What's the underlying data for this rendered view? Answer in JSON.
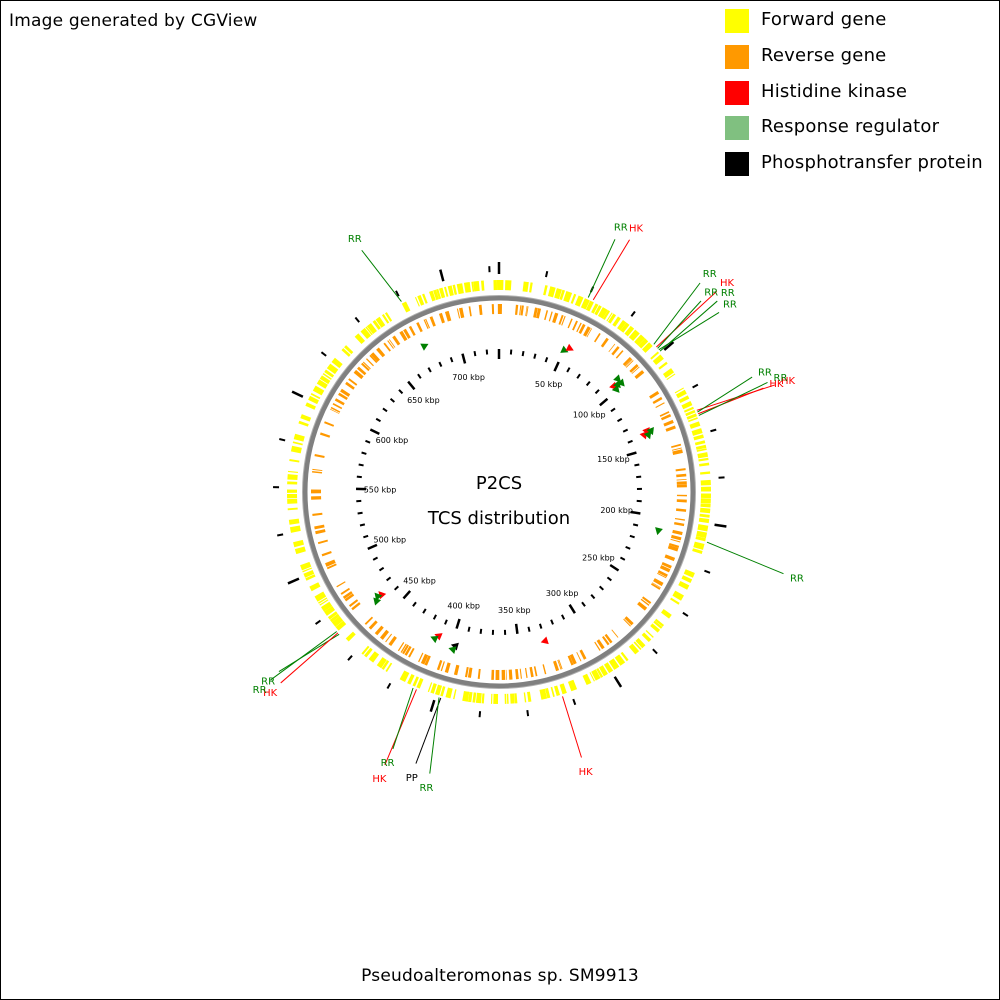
{
  "header": {
    "generated_by": "Image generated by CGView"
  },
  "legend": [
    {
      "label": "Forward gene",
      "color": "#ffff00"
    },
    {
      "label": "Reverse gene",
      "color": "#ff9900"
    },
    {
      "label": "Histidine kinase",
      "color": "#ff0000"
    },
    {
      "label": "Response regulator",
      "color": "#80c080"
    },
    {
      "label": "Phosphotransfer protein",
      "color": "#000000"
    }
  ],
  "center": {
    "line1": "P2CS",
    "line2": "TCS distribution"
  },
  "footer": {
    "organism": "Pseudoalteromonas sp. SM9913"
  },
  "colors": {
    "forward": "#ffff00",
    "reverse": "#ff9900",
    "hk": "#ff0000",
    "rr": "#008000",
    "pp": "#000000",
    "backbone": "#808080",
    "ticks": "#000000"
  },
  "chart_data": {
    "type": "circular-genome-map",
    "genome_length_kbp": 730,
    "tick_labels": [
      {
        "label": "50 kbp",
        "value": 50
      },
      {
        "label": "100 kbp",
        "value": 100
      },
      {
        "label": "150 kbp",
        "value": 150
      },
      {
        "label": "200 kbp",
        "value": 200
      },
      {
        "label": "250 kbp",
        "value": 250
      },
      {
        "label": "300 kbp",
        "value": 300
      },
      {
        "label": "350 kbp",
        "value": 350
      },
      {
        "label": "400 kbp",
        "value": 400
      },
      {
        "label": "450 kbp",
        "value": 450
      },
      {
        "label": "500 kbp",
        "value": 500
      },
      {
        "label": "550 kbp",
        "value": 550
      },
      {
        "label": "600 kbp",
        "value": 600
      },
      {
        "label": "650 kbp",
        "value": 650
      },
      {
        "label": "700 kbp",
        "value": 700
      }
    ],
    "tcs_genes": [
      {
        "label": "RR",
        "type": "rr",
        "position_kbp": 50
      },
      {
        "label": "HK",
        "type": "hk",
        "position_kbp": 53
      },
      {
        "label": "RR",
        "type": "rr",
        "position_kbp": 94
      },
      {
        "label": "HK",
        "type": "hk",
        "position_kbp": 96
      },
      {
        "label": "RR",
        "type": "rr",
        "position_kbp": 97
      },
      {
        "label": "RR",
        "type": "rr",
        "position_kbp": 98
      },
      {
        "label": "RR",
        "type": "rr",
        "position_kbp": 99
      },
      {
        "label": "HK",
        "type": "hk",
        "position_kbp": 137
      },
      {
        "label": "RR",
        "type": "rr",
        "position_kbp": 138
      },
      {
        "label": "HK",
        "type": "hk",
        "position_kbp": 139
      },
      {
        "label": "RR",
        "type": "rr",
        "position_kbp": 140
      },
      {
        "label": "RR",
        "type": "rr",
        "position_kbp": 210
      },
      {
        "label": "HK",
        "type": "hk",
        "position_kbp": 330
      },
      {
        "label": "PP",
        "type": "pp",
        "position_kbp": 397
      },
      {
        "label": "RR",
        "type": "rr",
        "position_kbp": 398
      },
      {
        "label": "HK",
        "type": "hk",
        "position_kbp": 411
      },
      {
        "label": "RR",
        "type": "rr",
        "position_kbp": 413
      },
      {
        "label": "RR",
        "type": "rr",
        "position_kbp": 463
      },
      {
        "label": "HK",
        "type": "hk",
        "position_kbp": 464
      },
      {
        "label": "RR",
        "type": "rr",
        "position_kbp": 465
      },
      {
        "label": "RR",
        "type": "rr",
        "position_kbp": 675
      }
    ]
  }
}
